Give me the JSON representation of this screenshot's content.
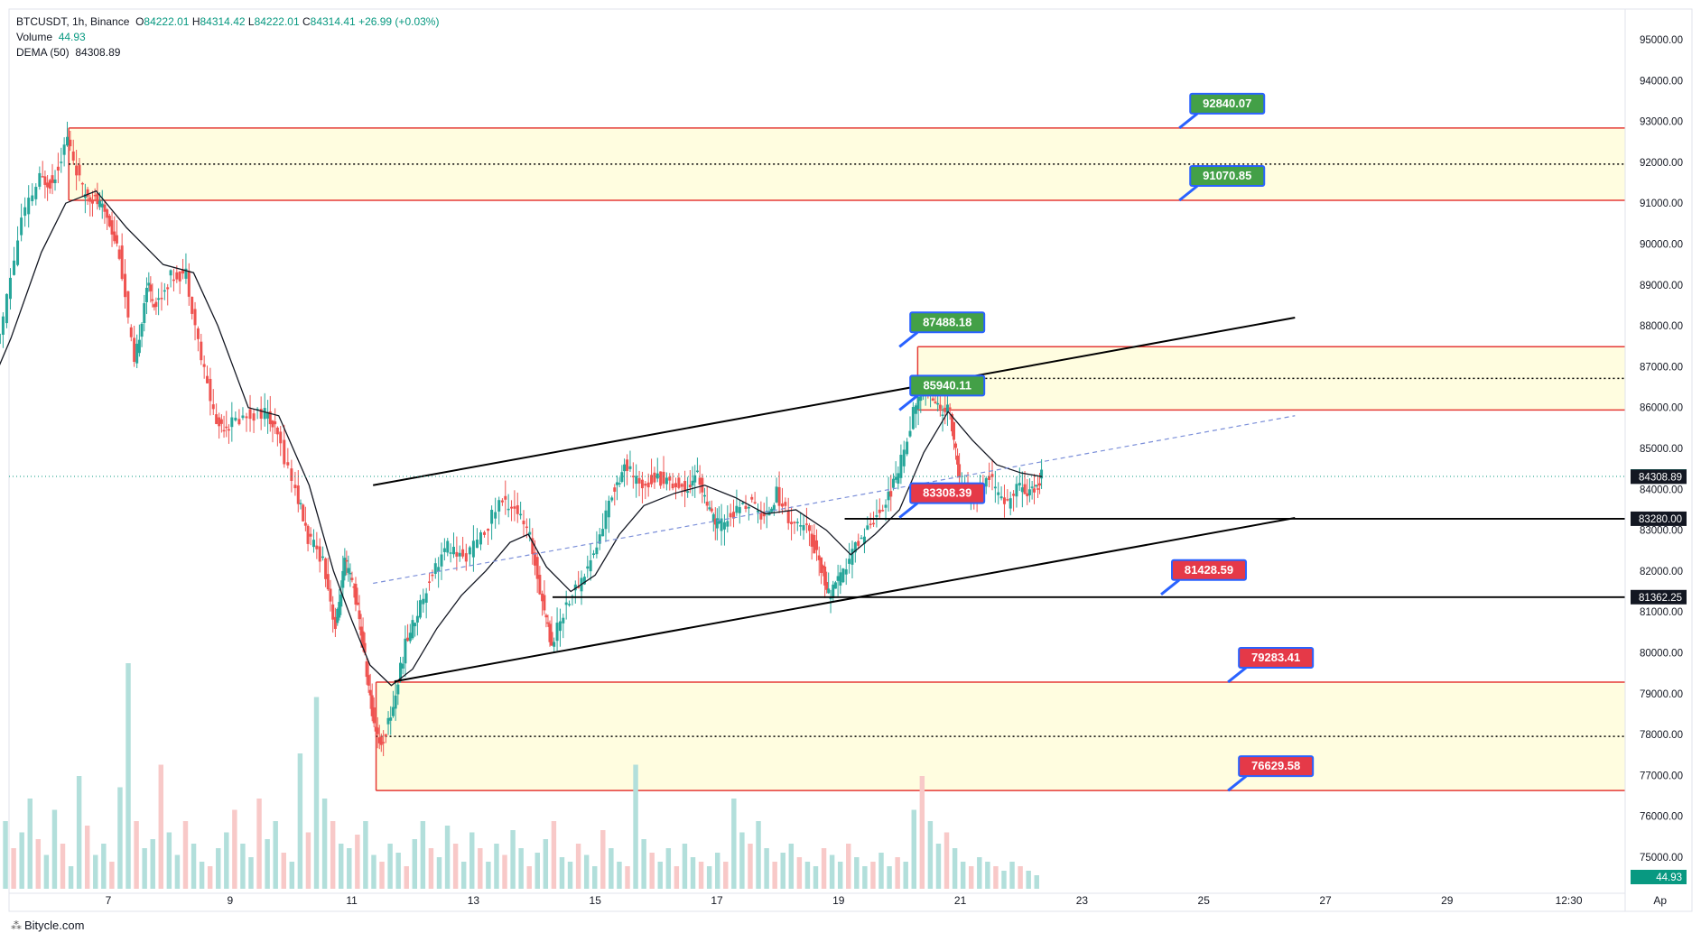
{
  "header": {
    "symbol": "BTCUSDT, 1h, Binance",
    "ohlc": {
      "o_label": "O",
      "o": "84222.01",
      "h_label": "H",
      "h": "84314.42",
      "l_label": "L",
      "l": "84222.01",
      "c_label": "C",
      "c": "84314.41",
      "change": "+26.99 (+0.03%)"
    },
    "volume_label": "Volume",
    "volume_value": "44.93",
    "dema_label": "DEMA (50)",
    "dema_value": "84308.89"
  },
  "brand": {
    "text": "Bitycle.com"
  },
  "colors": {
    "up": "#26a69a",
    "down": "#ef5350",
    "zone_fill": "#fffde0",
    "zone_border": "#e53935",
    "green_label": "#43a047",
    "red_label": "#e53948",
    "label_border": "#2962ff",
    "trend": "#000000",
    "midline": "#7b8fd9",
    "price_line": "#089981"
  },
  "chart_data": {
    "type": "candlestick",
    "symbol": "BTCUSDT",
    "interval": "1h",
    "y_ticks": [
      "95000.00",
      "94000.00",
      "93000.00",
      "92000.00",
      "91000.00",
      "90000.00",
      "89000.00",
      "88000.00",
      "87000.00",
      "86000.00",
      "85000.00",
      "84000.00",
      "83000.00",
      "82000.00",
      "81000.00",
      "80000.00",
      "79000.00",
      "78000.00",
      "77000.00",
      "76000.00",
      "75000.00"
    ],
    "x_ticks": [
      {
        "label": "7",
        "day": 7
      },
      {
        "label": "9",
        "day": 9
      },
      {
        "label": "11",
        "day": 11
      },
      {
        "label": "13",
        "day": 13
      },
      {
        "label": "15",
        "day": 15
      },
      {
        "label": "17",
        "day": 17
      },
      {
        "label": "19",
        "day": 19
      },
      {
        "label": "21",
        "day": 21
      },
      {
        "label": "23",
        "day": 23
      },
      {
        "label": "25",
        "day": 25
      },
      {
        "label": "27",
        "day": 27
      },
      {
        "label": "29",
        "day": 29
      },
      {
        "label": "12:30",
        "day": 31
      },
      {
        "label": "Ap",
        "day": 32.5
      }
    ],
    "price_path": [
      [
        5.0,
        86200
      ],
      [
        5.3,
        88200
      ],
      [
        5.6,
        90600
      ],
      [
        5.9,
        91600
      ],
      [
        6.1,
        91500
      ],
      [
        6.35,
        92600
      ],
      [
        6.6,
        91300
      ],
      [
        6.8,
        91100
      ],
      [
        7.0,
        90700
      ],
      [
        7.2,
        89800
      ],
      [
        7.45,
        87000
      ],
      [
        7.65,
        89000
      ],
      [
        7.8,
        88500
      ],
      [
        8.05,
        89200
      ],
      [
        8.3,
        89300
      ],
      [
        8.55,
        87200
      ],
      [
        8.8,
        85600
      ],
      [
        9.0,
        85600
      ],
      [
        9.3,
        85800
      ],
      [
        9.6,
        85900
      ],
      [
        9.8,
        85300
      ],
      [
        10.1,
        84000
      ],
      [
        10.3,
        82800
      ],
      [
        10.55,
        82300
      ],
      [
        10.75,
        80600
      ],
      [
        10.9,
        82200
      ],
      [
        11.05,
        81600
      ],
      [
        11.2,
        80200
      ],
      [
        11.35,
        78500
      ],
      [
        11.5,
        77700
      ],
      [
        11.7,
        78700
      ],
      [
        11.9,
        80200
      ],
      [
        12.1,
        81000
      ],
      [
        12.35,
        82000
      ],
      [
        12.6,
        82600
      ],
      [
        12.85,
        82300
      ],
      [
        13.15,
        82800
      ],
      [
        13.45,
        83700
      ],
      [
        13.7,
        83600
      ],
      [
        13.95,
        82800
      ],
      [
        14.15,
        81300
      ],
      [
        14.3,
        80200
      ],
      [
        14.55,
        81200
      ],
      [
        14.8,
        81800
      ],
      [
        15.05,
        82600
      ],
      [
        15.3,
        83900
      ],
      [
        15.5,
        84600
      ],
      [
        15.75,
        84100
      ],
      [
        16.0,
        84300
      ],
      [
        16.25,
        84200
      ],
      [
        16.5,
        84000
      ],
      [
        16.7,
        84400
      ],
      [
        16.9,
        83400
      ],
      [
        17.05,
        83100
      ],
      [
        17.3,
        83400
      ],
      [
        17.55,
        83700
      ],
      [
        17.8,
        83300
      ],
      [
        18.0,
        83900
      ],
      [
        18.25,
        83200
      ],
      [
        18.5,
        83000
      ],
      [
        18.7,
        82300
      ],
      [
        18.85,
        81400
      ],
      [
        19.05,
        81800
      ],
      [
        19.3,
        82600
      ],
      [
        19.55,
        83200
      ],
      [
        19.8,
        83700
      ],
      [
        20.0,
        84400
      ],
      [
        20.25,
        85900
      ],
      [
        20.45,
        86500
      ],
      [
        20.65,
        86000
      ],
      [
        20.85,
        85900
      ],
      [
        21.0,
        84200
      ],
      [
        21.25,
        83800
      ],
      [
        21.5,
        84300
      ],
      [
        21.75,
        83600
      ],
      [
        22.0,
        84100
      ],
      [
        22.2,
        83900
      ],
      [
        22.35,
        84314
      ]
    ],
    "dema_series": {
      "name": "DEMA (50)",
      "points": [
        [
          5.0,
          86300
        ],
        [
          5.4,
          87700
        ],
        [
          5.9,
          89800
        ],
        [
          6.3,
          91000
        ],
        [
          6.8,
          91300
        ],
        [
          7.3,
          90400
        ],
        [
          7.9,
          89500
        ],
        [
          8.4,
          89300
        ],
        [
          8.8,
          88000
        ],
        [
          9.3,
          86000
        ],
        [
          9.8,
          85800
        ],
        [
          10.3,
          84100
        ],
        [
          10.7,
          82000
        ],
        [
          11.0,
          80800
        ],
        [
          11.3,
          79700
        ],
        [
          11.65,
          79200
        ],
        [
          12.0,
          79600
        ],
        [
          12.4,
          80600
        ],
        [
          12.8,
          81400
        ],
        [
          13.2,
          82000
        ],
        [
          13.6,
          82700
        ],
        [
          13.9,
          82900
        ],
        [
          14.2,
          82100
        ],
        [
          14.6,
          81500
        ],
        [
          15.0,
          81900
        ],
        [
          15.4,
          82900
        ],
        [
          15.8,
          83600
        ],
        [
          16.3,
          83900
        ],
        [
          16.8,
          84100
        ],
        [
          17.3,
          83800
        ],
        [
          17.8,
          83400
        ],
        [
          18.3,
          83500
        ],
        [
          18.8,
          83000
        ],
        [
          19.2,
          82400
        ],
        [
          19.6,
          82900
        ],
        [
          20.0,
          83500
        ],
        [
          20.4,
          84900
        ],
        [
          20.8,
          85900
        ],
        [
          21.2,
          85200
        ],
        [
          21.6,
          84600
        ],
        [
          22.0,
          84400
        ],
        [
          22.35,
          84308.89
        ]
      ]
    },
    "volume_heights": [
      0.08,
      0.12,
      0.3,
      0.18,
      0.25,
      0.4,
      0.22,
      0.15,
      0.35,
      0.2,
      0.1,
      0.5,
      0.28,
      0.15,
      0.2,
      0.12,
      0.45,
      1.0,
      0.3,
      0.18,
      0.22,
      0.55,
      0.25,
      0.15,
      0.3,
      0.2,
      0.12,
      0.1,
      0.18,
      0.25,
      0.35,
      0.2,
      0.14,
      0.4,
      0.22,
      0.3,
      0.16,
      0.12,
      0.6,
      0.25,
      0.85,
      0.4,
      0.3,
      0.2,
      0.18,
      0.24,
      0.3,
      0.15,
      0.12,
      0.2,
      0.16,
      0.1,
      0.22,
      0.3,
      0.18,
      0.14,
      0.28,
      0.2,
      0.12,
      0.25,
      0.18,
      0.12,
      0.2,
      0.15,
      0.26,
      0.18,
      0.1,
      0.16,
      0.22,
      0.3,
      0.14,
      0.12,
      0.2,
      0.15,
      0.1,
      0.26,
      0.18,
      0.12,
      0.1,
      0.55,
      0.22,
      0.16,
      0.12,
      0.18,
      0.1,
      0.2,
      0.14,
      0.12,
      0.1,
      0.16,
      0.12,
      0.4,
      0.25,
      0.2,
      0.3,
      0.18,
      0.12,
      0.16,
      0.2,
      0.14,
      0.12,
      0.1,
      0.18,
      0.15,
      0.12,
      0.2,
      0.14,
      0.1,
      0.12,
      0.16,
      0.1,
      0.14,
      0.12,
      0.35,
      0.5,
      0.3,
      0.2,
      0.25,
      0.18,
      0.12,
      0.1,
      0.14,
      0.12,
      0.1,
      0.08,
      0.12,
      0.1,
      0.08,
      0.06
    ],
    "zones": [
      {
        "top": 92840.07,
        "bottom": 91070.85,
        "start_day": 6.35
      },
      {
        "top": 87488.18,
        "bottom": 85940.11,
        "start_day": 20.3
      },
      {
        "top": 79283.41,
        "bottom": 76629.58,
        "start_day": 11.4
      }
    ],
    "horizontal_lines": [
      {
        "price": 83280.0,
        "start_day": 19.1
      },
      {
        "price": 81362.25,
        "start_day": 14.3
      }
    ],
    "trend_lines": [
      {
        "from": [
          11.35,
          84100
        ],
        "to": [
          26.5,
          88200
        ]
      },
      {
        "from": [
          11.7,
          79300
        ],
        "to": [
          26.5,
          83300
        ]
      }
    ],
    "channel_midline": {
      "from": [
        11.35,
        81700
      ],
      "to": [
        26.5,
        85800
      ]
    },
    "labels": [
      {
        "text": "92840.07",
        "color": "green",
        "price": 92840.07,
        "day": 24.6
      },
      {
        "text": "91070.85",
        "color": "green",
        "price": 91070.85,
        "day": 24.6
      },
      {
        "text": "87488.18",
        "color": "green",
        "price": 87488.18,
        "day": 20.0
      },
      {
        "text": "85940.11",
        "color": "green",
        "price": 85940.11,
        "day": 20.0
      },
      {
        "text": "83308.39",
        "color": "red",
        "price": 83308.39,
        "day": 20.0
      },
      {
        "text": "81428.59",
        "color": "red",
        "price": 81428.59,
        "day": 24.3
      },
      {
        "text": "79283.41",
        "color": "red",
        "price": 79283.41,
        "day": 25.4
      },
      {
        "text": "76629.58",
        "color": "red",
        "price": 76629.58,
        "day": 25.4
      }
    ],
    "axis_badges": [
      {
        "text": "84314.41",
        "price": 84314.41,
        "color": "#089981"
      },
      {
        "text": "84308.89",
        "price": 84308.89,
        "color": "#131722"
      },
      {
        "text": "83280.00",
        "price": 83280.0,
        "color": "#131722"
      },
      {
        "text": "81362.25",
        "price": 81362.25,
        "color": "#131722"
      },
      {
        "text": "44.93",
        "price": "volume",
        "color": "#089981"
      }
    ],
    "ylim": [
      74400,
      95700
    ]
  }
}
